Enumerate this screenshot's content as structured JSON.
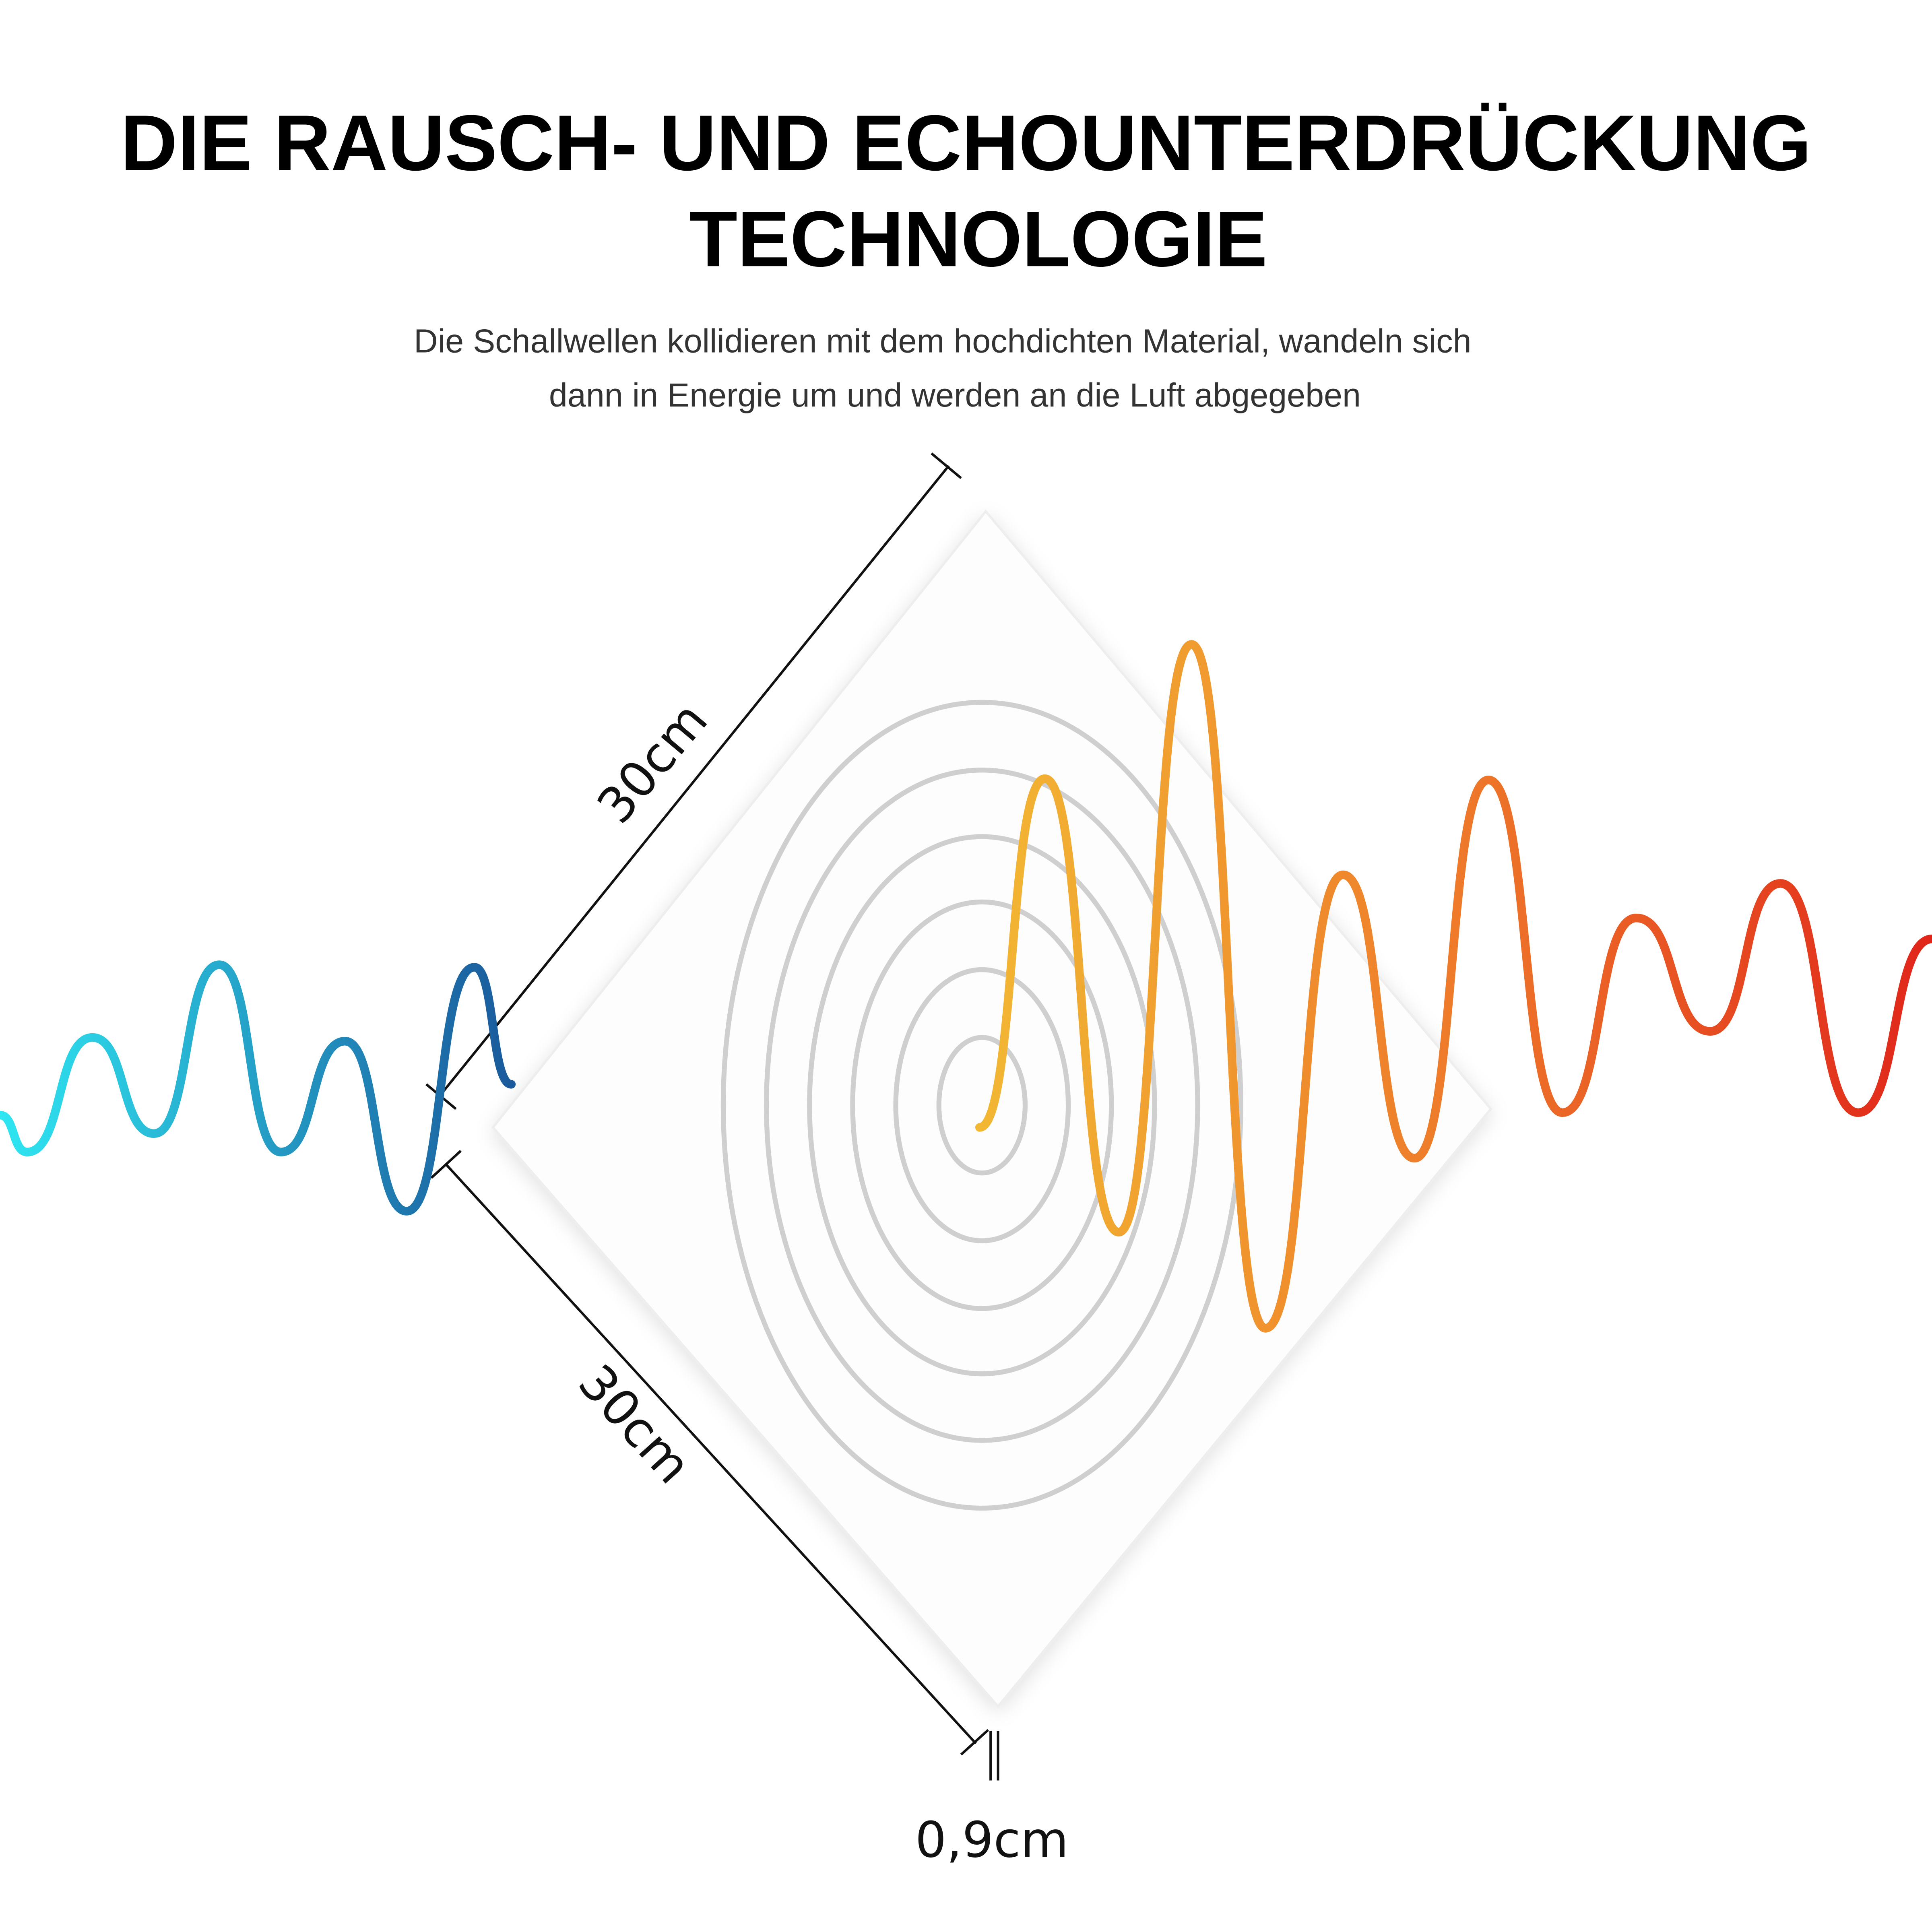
{
  "header": {
    "title_lines": [
      "DIE RAUSCH- UND ECHOUNTERDRÜCKUNG",
      "TECHNOLOGIE"
    ],
    "subtitle_lines": [
      "Die Schallwellen kollidieren mit dem hochdichten Material, wandeln sich",
      "dann in Energie um und werden an die Luft abgegeben"
    ]
  },
  "dimensions": {
    "width": "30cm",
    "height": "30cm",
    "thickness": "0,9cm"
  }
}
